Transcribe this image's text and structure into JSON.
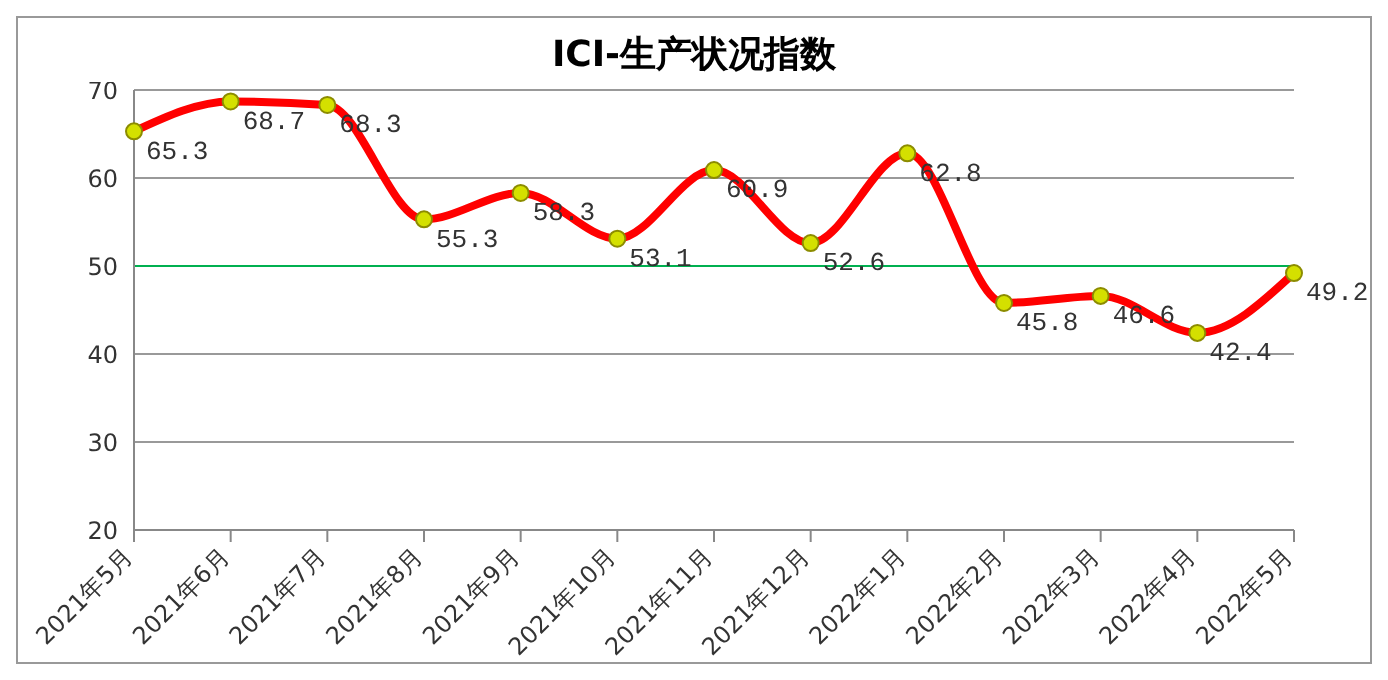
{
  "chart_data": {
    "type": "line",
    "title": "ICI-生产状况指数",
    "categories": [
      "2021年5月",
      "2021年6月",
      "2021年7月",
      "2021年8月",
      "2021年9月",
      "2021年10月",
      "2021年11月",
      "2021年12月",
      "2022年1月",
      "2022年2月",
      "2022年3月",
      "2022年4月",
      "2022年5月"
    ],
    "series": [
      {
        "color": "#ff0000",
        "values": [
          65.3,
          68.7,
          68.3,
          55.3,
          58.3,
          53.1,
          60.9,
          52.6,
          62.8,
          45.8,
          46.6,
          42.4,
          49.2
        ]
      }
    ],
    "ylim": [
      20,
      70
    ],
    "yticks": [
      20,
      30,
      40,
      50,
      60,
      70
    ],
    "grid": "y",
    "marker": "circle",
    "line_style": "solid",
    "legend": false,
    "data_labels": true,
    "ref_lines": [
      {
        "axis": "y",
        "value": 50,
        "color": "#00b050"
      }
    ]
  }
}
